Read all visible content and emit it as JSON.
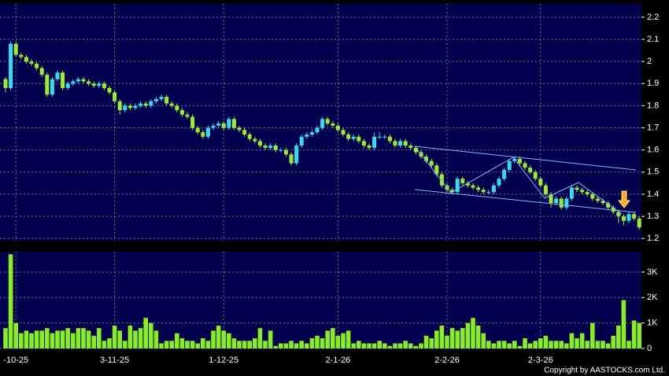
{
  "chart_data": [
    {
      "type": "candlestick",
      "categories": [
        null,
        null,
        "-10-25",
        null,
        null,
        null,
        null,
        null,
        null,
        null,
        null,
        null,
        null,
        null,
        null,
        null,
        null,
        null,
        null,
        null,
        null,
        "3-11-25",
        null,
        null,
        null,
        null,
        null,
        null,
        null,
        null,
        null,
        null,
        null,
        null,
        null,
        null,
        null,
        null,
        null,
        null,
        null,
        null,
        "1-12-25",
        null,
        null,
        null,
        null,
        null,
        null,
        null,
        null,
        null,
        null,
        null,
        null,
        null,
        null,
        null,
        null,
        null,
        null,
        null,
        null,
        null,
        "2-1-26",
        null,
        null,
        null,
        null,
        null,
        null,
        null,
        null,
        null,
        null,
        null,
        null,
        null,
        null,
        null,
        null,
        null,
        null,
        null,
        null,
        "2-2-26",
        null,
        null,
        null,
        null,
        null,
        null,
        null,
        null,
        null,
        null,
        null,
        null,
        null,
        null,
        null,
        null,
        null,
        "2-3-26",
        null,
        null,
        null,
        null,
        null,
        null,
        null,
        null,
        null,
        null,
        null,
        null,
        null,
        null,
        null,
        null,
        null,
        null,
        null
      ],
      "open": [
        1.92,
        1.88,
        2.08,
        2.03,
        2.02,
        2.0,
        1.99,
        1.97,
        1.94,
        1.85,
        1.92,
        1.95,
        1.88,
        1.9,
        1.91,
        1.92,
        1.91,
        1.9,
        1.89,
        1.9,
        1.88,
        1.86,
        1.82,
        1.78,
        1.8,
        1.79,
        1.8,
        1.81,
        1.8,
        1.82,
        1.83,
        1.84,
        1.81,
        1.8,
        1.78,
        1.76,
        1.75,
        1.7,
        1.68,
        1.66,
        1.7,
        1.71,
        1.72,
        1.7,
        1.74,
        1.7,
        1.69,
        1.67,
        1.65,
        1.64,
        1.62,
        1.61,
        1.62,
        1.6,
        1.6,
        1.58,
        1.54,
        1.62,
        1.66,
        1.67,
        1.68,
        1.7,
        1.74,
        1.72,
        1.71,
        1.69,
        1.67,
        1.65,
        1.66,
        1.64,
        1.62,
        1.61,
        1.66,
        1.66,
        1.66,
        1.64,
        1.62,
        1.64,
        1.62,
        1.61,
        1.59,
        1.57,
        1.55,
        1.53,
        1.49,
        1.44,
        1.42,
        1.41,
        1.47,
        1.45,
        1.44,
        1.43,
        1.42,
        1.41,
        1.41,
        1.44,
        1.47,
        1.51,
        1.55,
        1.56,
        1.54,
        1.52,
        1.5,
        1.47,
        1.44,
        1.4,
        1.36,
        1.38,
        1.34,
        1.38,
        1.43,
        1.42,
        1.41,
        1.4,
        1.38,
        1.37,
        1.36,
        1.34,
        1.32,
        1.3,
        1.28,
        1.31,
        1.29
      ],
      "high": [
        1.93,
        2.09,
        2.09,
        2.04,
        2.03,
        2.01,
        2.0,
        1.98,
        1.95,
        1.93,
        1.96,
        1.96,
        1.91,
        1.92,
        1.93,
        1.93,
        1.92,
        1.91,
        1.91,
        1.91,
        1.89,
        1.87,
        1.83,
        1.81,
        1.81,
        1.81,
        1.82,
        1.82,
        1.83,
        1.84,
        1.85,
        1.85,
        1.82,
        1.81,
        1.79,
        1.77,
        1.76,
        1.71,
        1.69,
        1.71,
        1.72,
        1.73,
        1.73,
        1.75,
        1.75,
        1.71,
        1.7,
        1.68,
        1.66,
        1.65,
        1.63,
        1.63,
        1.63,
        1.61,
        1.61,
        1.59,
        1.63,
        1.67,
        1.68,
        1.69,
        1.71,
        1.75,
        1.75,
        1.73,
        1.72,
        1.7,
        1.68,
        1.67,
        1.67,
        1.65,
        1.63,
        1.68,
        1.68,
        1.67,
        1.67,
        1.65,
        1.65,
        1.65,
        1.63,
        1.62,
        1.6,
        1.58,
        1.56,
        1.54,
        1.5,
        1.45,
        1.43,
        1.48,
        1.48,
        1.46,
        1.45,
        1.44,
        1.43,
        1.42,
        1.45,
        1.48,
        1.52,
        1.56,
        1.57,
        1.57,
        1.55,
        1.53,
        1.51,
        1.48,
        1.45,
        1.41,
        1.39,
        1.39,
        1.39,
        1.44,
        1.44,
        1.43,
        1.42,
        1.41,
        1.39,
        1.38,
        1.37,
        1.35,
        1.33,
        1.31,
        1.32,
        1.32,
        1.3
      ],
      "low": [
        1.86,
        1.87,
        2.02,
        2.01,
        1.99,
        1.98,
        1.96,
        1.93,
        1.84,
        1.84,
        1.91,
        1.87,
        1.87,
        1.89,
        1.9,
        1.9,
        1.89,
        1.88,
        1.88,
        1.87,
        1.85,
        1.81,
        1.76,
        1.77,
        1.78,
        1.78,
        1.79,
        1.79,
        1.79,
        1.81,
        1.82,
        1.8,
        1.79,
        1.77,
        1.75,
        1.74,
        1.69,
        1.67,
        1.65,
        1.65,
        1.69,
        1.7,
        1.69,
        1.69,
        1.69,
        1.68,
        1.66,
        1.64,
        1.63,
        1.61,
        1.6,
        1.6,
        1.59,
        1.59,
        1.57,
        1.53,
        1.53,
        1.61,
        1.65,
        1.66,
        1.67,
        1.69,
        1.71,
        1.7,
        1.68,
        1.66,
        1.64,
        1.64,
        1.63,
        1.61,
        1.6,
        1.6,
        1.65,
        1.65,
        1.63,
        1.61,
        1.61,
        1.61,
        1.6,
        1.58,
        1.56,
        1.54,
        1.52,
        1.48,
        1.43,
        1.41,
        1.4,
        1.4,
        1.44,
        1.43,
        1.42,
        1.41,
        1.4,
        1.4,
        1.4,
        1.43,
        1.46,
        1.5,
        1.54,
        1.53,
        1.51,
        1.49,
        1.46,
        1.43,
        1.39,
        1.34,
        1.35,
        1.33,
        1.33,
        1.37,
        1.41,
        1.4,
        1.39,
        1.37,
        1.36,
        1.35,
        1.33,
        1.31,
        1.27,
        1.26,
        1.27,
        1.28,
        1.24
      ],
      "close": [
        1.88,
        2.08,
        2.03,
        2.02,
        2.0,
        1.99,
        1.97,
        1.94,
        1.85,
        1.92,
        1.95,
        1.88,
        1.9,
        1.91,
        1.92,
        1.91,
        1.9,
        1.89,
        1.9,
        1.88,
        1.86,
        1.82,
        1.78,
        1.8,
        1.79,
        1.8,
        1.81,
        1.8,
        1.82,
        1.83,
        1.84,
        1.81,
        1.8,
        1.78,
        1.76,
        1.75,
        1.7,
        1.68,
        1.66,
        1.7,
        1.71,
        1.72,
        1.7,
        1.74,
        1.7,
        1.69,
        1.67,
        1.65,
        1.64,
        1.62,
        1.61,
        1.62,
        1.6,
        1.6,
        1.58,
        1.54,
        1.62,
        1.66,
        1.67,
        1.68,
        1.7,
        1.74,
        1.72,
        1.71,
        1.69,
        1.67,
        1.65,
        1.66,
        1.64,
        1.62,
        1.61,
        1.66,
        1.66,
        1.66,
        1.64,
        1.62,
        1.64,
        1.62,
        1.61,
        1.59,
        1.57,
        1.55,
        1.53,
        1.49,
        1.44,
        1.42,
        1.41,
        1.47,
        1.45,
        1.44,
        1.43,
        1.42,
        1.41,
        1.41,
        1.44,
        1.47,
        1.51,
        1.55,
        1.56,
        1.54,
        1.52,
        1.5,
        1.47,
        1.44,
        1.4,
        1.36,
        1.38,
        1.34,
        1.38,
        1.43,
        1.42,
        1.41,
        1.4,
        1.38,
        1.37,
        1.36,
        1.34,
        1.32,
        1.3,
        1.28,
        1.31,
        1.29,
        1.25
      ],
      "up_color": "#33ddee",
      "down_color": "#99ee33",
      "ylim": [
        1.19,
        2.26
      ],
      "yticks": [
        1.2,
        1.3,
        1.4,
        1.5,
        1.6,
        1.7,
        1.8,
        1.9,
        2,
        2.1,
        2.2
      ],
      "grid": true
    },
    {
      "type": "bar",
      "values": [
        800,
        3700,
        1000,
        600,
        700,
        600,
        700,
        700,
        800,
        600,
        700,
        700,
        800,
        600,
        800,
        800,
        700,
        500,
        800,
        300,
        400,
        900,
        700,
        300,
        900,
        700,
        800,
        1200,
        1000,
        700,
        200,
        300,
        300,
        600,
        400,
        300,
        300,
        200,
        400,
        300,
        700,
        900,
        700,
        600,
        400,
        300,
        300,
        300,
        400,
        800,
        300,
        700,
        100,
        200,
        200,
        300,
        200,
        300,
        200,
        400,
        500,
        400,
        700,
        800,
        500,
        600,
        700,
        200,
        300,
        200,
        200,
        200,
        300,
        200,
        100,
        200,
        200,
        300,
        200,
        100,
        200,
        500,
        400,
        700,
        900,
        500,
        800,
        700,
        800,
        1000,
        1200,
        900,
        600,
        300,
        200,
        300,
        300,
        200,
        300,
        100,
        400,
        200,
        300,
        400,
        500,
        300,
        300,
        300,
        200,
        600,
        400,
        600,
        300,
        1000,
        300,
        300,
        200,
        500,
        900,
        1900,
        300,
        1100,
        1000
      ],
      "color": "#88ee22",
      "ylim": [
        0,
        3800
      ],
      "yticks": [
        0,
        {
          "value": 1000,
          "label": "1K"
        },
        {
          "value": 2000,
          "label": "2K"
        },
        {
          "value": 3000,
          "label": "3K"
        }
      ],
      "grid": true
    }
  ],
  "footer": {
    "copyright": "Copyright by AASTOCKS.com Ltd."
  }
}
